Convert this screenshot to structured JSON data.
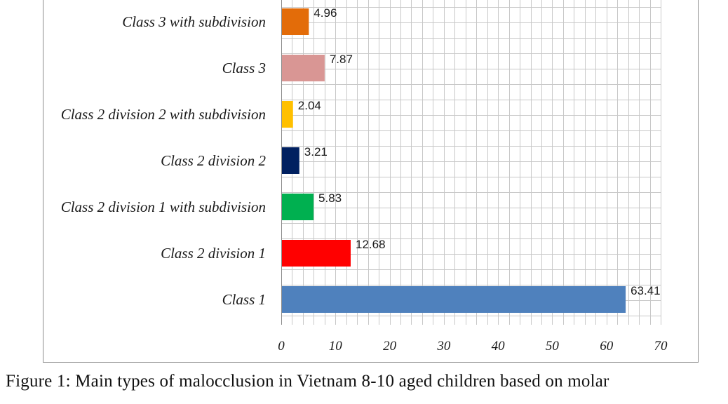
{
  "caption": "Figure 1: Main types of malocclusion in Vietnam 8-10 aged children based on molar",
  "chart_data": {
    "type": "bar",
    "orientation": "horizontal",
    "categories": [
      "Class 3 with subdivision",
      "Class 3",
      "Class 2 division 2 with subdivision",
      "Class 2 division 2",
      "Class 2 division 1 with subdivision",
      "Class 2 division 1",
      "Class 1"
    ],
    "values": [
      4.96,
      7.87,
      2.04,
      3.21,
      5.83,
      12.68,
      63.41
    ],
    "value_labels": [
      "4.96",
      "7.87",
      "2.04",
      "3.21",
      "5.83",
      "12.68",
      "63.41"
    ],
    "colors": [
      "#e36c09",
      "#d99694",
      "#ffc000",
      "#002060",
      "#00b050",
      "#ff0000",
      "#4f81bd"
    ],
    "title": "",
    "xlabel": "",
    "ylabel": "",
    "xlim": [
      0,
      70
    ],
    "xticks": [
      "0",
      "10",
      "20",
      "30",
      "40",
      "50",
      "60",
      "70"
    ],
    "grid": true,
    "legend": "none"
  }
}
